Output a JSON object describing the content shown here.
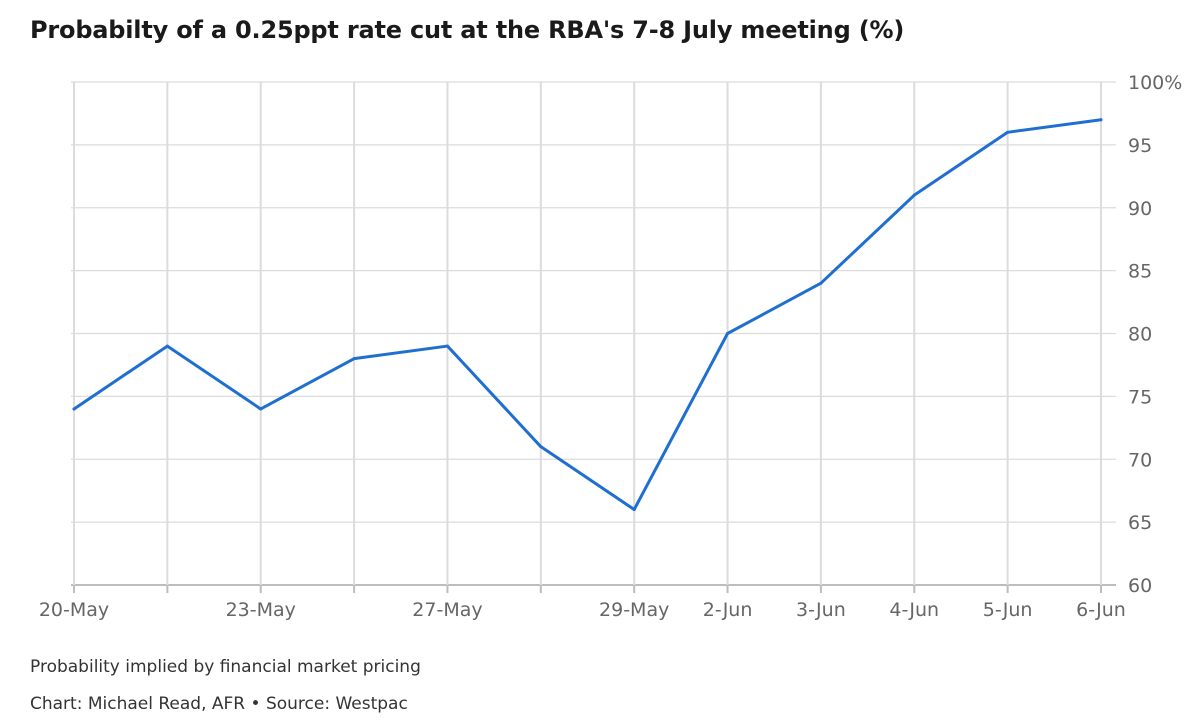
{
  "title": "Probabilty of a 0.25ppt rate cut at the RBA's 7-8 July meeting (%)",
  "subtitle": "Probability implied by financial market pricing",
  "credit": "Chart: Michael Read, AFR • Source: Westpac",
  "chart_data": {
    "type": "line",
    "title": "Probabilty of a 0.25ppt rate cut at the RBA's 7-8 July meeting (%)",
    "xlabel": "",
    "ylabel": "",
    "x_ticks": [
      "20-May",
      "",
      "23-May",
      "",
      "27-May",
      "",
      "29-May",
      "2-Jun",
      "3-Jun",
      "4-Jun",
      "5-Jun",
      "6-Jun"
    ],
    "x_ticks_shown": [
      "20-May",
      "23-May",
      "27-May",
      "29-May",
      "2-Jun",
      "3-Jun",
      "4-Jun",
      "5-Jun",
      "6-Jun"
    ],
    "y_ticks": [
      "60",
      "65",
      "70",
      "75",
      "80",
      "85",
      "90",
      "95",
      "100%"
    ],
    "ylim": [
      60,
      100
    ],
    "grid": true,
    "series": [
      {
        "values": [
          74,
          79,
          74,
          78,
          79,
          71,
          66,
          80,
          84,
          91,
          96,
          97
        ]
      }
    ],
    "colors": {
      "line": "#1f6fd1",
      "grid": "#dcdcdc",
      "axis_text": "#666666"
    }
  }
}
